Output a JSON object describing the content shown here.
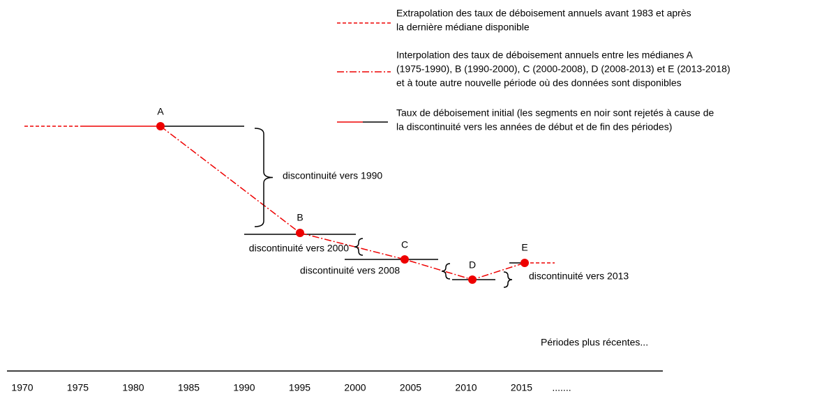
{
  "legend": [
    {
      "lines": [
        "Extrapolation des taux de déboisement annuels avant 1983 et après",
        "la dernière médiane disponible"
      ]
    },
    {
      "lines": [
        "Interpolation des taux de déboisement annuels entre les médianes A",
        "(1975-1990), B (1990-2000), C (2000-2008), D (2008-2013) et E  (2013-2018)",
        "et à toute autre nouvelle période où des données sont disponibles"
      ]
    },
    {
      "lines": [
        "Taux de déboisement initial (les segments en noir sont rejetés à cause de",
        "la discontinuité vers les années de début et de fin des périodes)"
      ]
    }
  ],
  "points": [
    {
      "label": "A"
    },
    {
      "label": "B"
    },
    {
      "label": "C"
    },
    {
      "label": "D"
    },
    {
      "label": "E"
    }
  ],
  "discontinuities": [
    {
      "label": "discontinuité vers 1990"
    },
    {
      "label": "discontinuité vers 2000"
    },
    {
      "label": "discontinuité vers 2008"
    },
    {
      "label": "discontinuité vers 2013"
    }
  ],
  "note": "Périodes plus récentes...",
  "axis": {
    "years": [
      "1970",
      "1975",
      "1980",
      "1985",
      "1990",
      "1995",
      "2000",
      "2005",
      "2010",
      "2015"
    ],
    "more": "......."
  }
}
